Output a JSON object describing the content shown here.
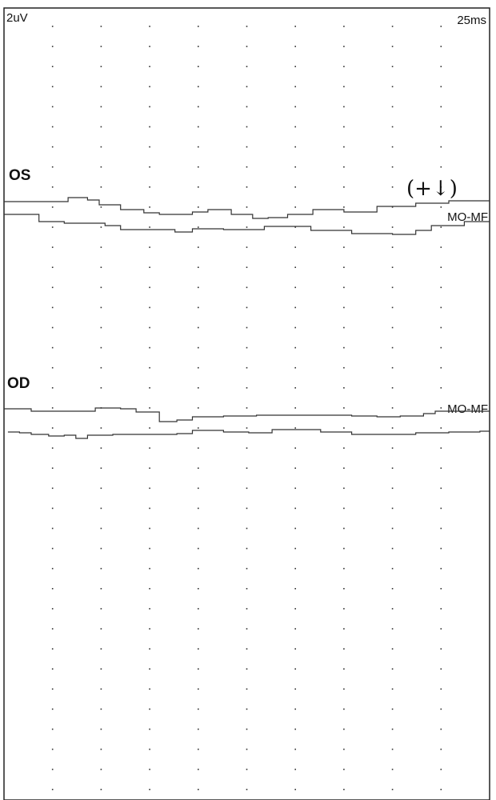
{
  "chart_data": {
    "type": "line",
    "scale_labels": {
      "amplitude": "2uV",
      "time": "25ms"
    },
    "x_per_division_ms": 25,
    "y_per_division_uV": 2,
    "xlim_ms": [
      0,
      250
    ],
    "grid": "dotted",
    "annotation": "(+↓)",
    "channels": [
      {
        "eye": "OS",
        "derivation": "MO-MF",
        "traces": [
          [
            [
              0,
              0.64
            ],
            [
              24.7,
              0.64
            ],
            [
              33,
              1.04
            ],
            [
              43,
              0.8
            ],
            [
              49,
              0.32
            ],
            [
              60,
              -0.16
            ],
            [
              72,
              -0.48
            ],
            [
              80,
              -0.64
            ],
            [
              97,
              -0.4
            ],
            [
              105,
              -0.16
            ],
            [
              117,
              -0.64
            ],
            [
              128,
              -1.04
            ],
            [
              136,
              -0.96
            ],
            [
              146,
              -0.64
            ],
            [
              159,
              -0.16
            ],
            [
              175,
              -0.4
            ],
            [
              192,
              0.16
            ],
            [
              212,
              0.48
            ],
            [
              229,
              0.72
            ],
            [
              250,
              0.64
            ]
          ],
          [
            [
              0,
              0.96
            ],
            [
              18,
              0.24
            ],
            [
              31,
              0.08
            ],
            [
              52,
              -0.16
            ],
            [
              60,
              -0.56
            ],
            [
              88,
              -0.8
            ],
            [
              97,
              -0.48
            ],
            [
              113,
              -0.56
            ],
            [
              134,
              -0.24
            ],
            [
              150,
              -0.24
            ],
            [
              158,
              -0.64
            ],
            [
              179,
              -0.96
            ],
            [
              200,
              -1.04
            ],
            [
              212,
              -0.64
            ],
            [
              220,
              -0.16
            ],
            [
              237,
              0.24
            ],
            [
              250,
              0.48
            ]
          ]
        ]
      },
      {
        "eye": "OD",
        "derivation": "MO-MF",
        "traces": [
          [
            [
              0,
              0.72
            ],
            [
              6,
              0.72
            ],
            [
              14,
              0.48
            ],
            [
              23,
              0.48
            ],
            [
              47,
              0.8
            ],
            [
              60,
              0.72
            ],
            [
              68,
              0.4
            ],
            [
              80,
              -0.56
            ],
            [
              89,
              -0.4
            ],
            [
              97,
              -0.08
            ],
            [
              113,
              0
            ],
            [
              130,
              0.08
            ],
            [
              154,
              0.08
            ],
            [
              179,
              0
            ],
            [
              192,
              -0.08
            ],
            [
              204,
              0
            ],
            [
              216,
              0.24
            ],
            [
              222,
              0.48
            ],
            [
              250,
              0.56
            ]
          ],
          [
            [
              2,
              0.16
            ],
            [
              8,
              0.08
            ],
            [
              14,
              -0.08
            ],
            [
              23,
              -0.24
            ],
            [
              31,
              -0.16
            ],
            [
              37,
              -0.48
            ],
            [
              43,
              -0.16
            ],
            [
              56,
              -0.08
            ],
            [
              80,
              -0.08
            ],
            [
              89,
              0
            ],
            [
              97,
              0.32
            ],
            [
              113,
              0.16
            ],
            [
              126,
              0.08
            ],
            [
              138,
              0.4
            ],
            [
              154,
              0.4
            ],
            [
              163,
              0.16
            ],
            [
              179,
              -0.08
            ],
            [
              200,
              -0.08
            ],
            [
              212,
              0.08
            ],
            [
              229,
              0.16
            ],
            [
              245,
              0.24
            ],
            [
              250,
              0
            ]
          ]
        ]
      }
    ]
  }
}
